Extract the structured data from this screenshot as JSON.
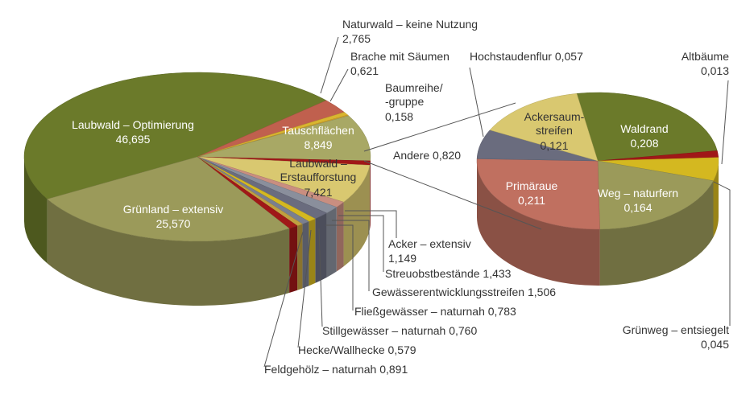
{
  "chart_data": [
    {
      "type": "pie",
      "categories": [
        "Laubwald – Optimierung",
        "Naturwald – keine Nutzung",
        "Brache mit Säumen",
        "Baumreihe/\n-gruppe",
        "Tauschflächen",
        "Andere",
        "Laubwald –\nErstaufforstung",
        "Acker – extensiv",
        "Streuobstbestände",
        "Gewässerentwicklungsstreifen",
        "Fließgewässer – naturnah",
        "Stillgewässer – naturnah",
        "Hecke/Wallhecke",
        "Feldgehölz – naturnah",
        "Grünland – extensiv"
      ],
      "values": [
        46.695,
        2.765,
        0.621,
        0.158,
        8.849,
        0.82,
        7.421,
        1.149,
        1.433,
        1.506,
        0.783,
        0.76,
        0.579,
        0.891,
        25.57
      ],
      "value_labels": [
        "46,695",
        "2,765",
        "0,621",
        "0,158",
        "8,849",
        "0,820",
        "7,421",
        "1,149",
        "1,433",
        "1,506",
        "0,783",
        "0,760",
        "0,579",
        "0,891",
        "25,570"
      ],
      "colors": [
        "#6b7a2a",
        "#c0604e",
        "#d9b530",
        "#d7a52a",
        "#a8a865",
        "#a01818",
        "#d9c870",
        "#c98e80",
        "#8a8f9c",
        "#6a6c7e",
        "#d4b820",
        "#7a7f8f",
        "#c0a040",
        "#a01818",
        "#9b9a5a"
      ]
    },
    {
      "type": "pie",
      "categories": [
        "Waldrand",
        "Altbäume",
        "Grünweg – entsiegelt",
        "Weg – naturfern",
        "Primäraue",
        "Hochstaudenflur",
        "Ackersaum-\nstreifen"
      ],
      "values": [
        0.208,
        0.013,
        0.045,
        0.164,
        0.211,
        0.057,
        0.121
      ],
      "value_labels": [
        "0,208",
        "0,013",
        "0,045",
        "0,164",
        "0,211",
        "0,057",
        "0,121"
      ],
      "colors": [
        "#6b7a2a",
        "#a01818",
        "#d4b820",
        "#9b9a5a",
        "#c07060",
        "#6a6c7e",
        "#d9c870"
      ]
    }
  ]
}
